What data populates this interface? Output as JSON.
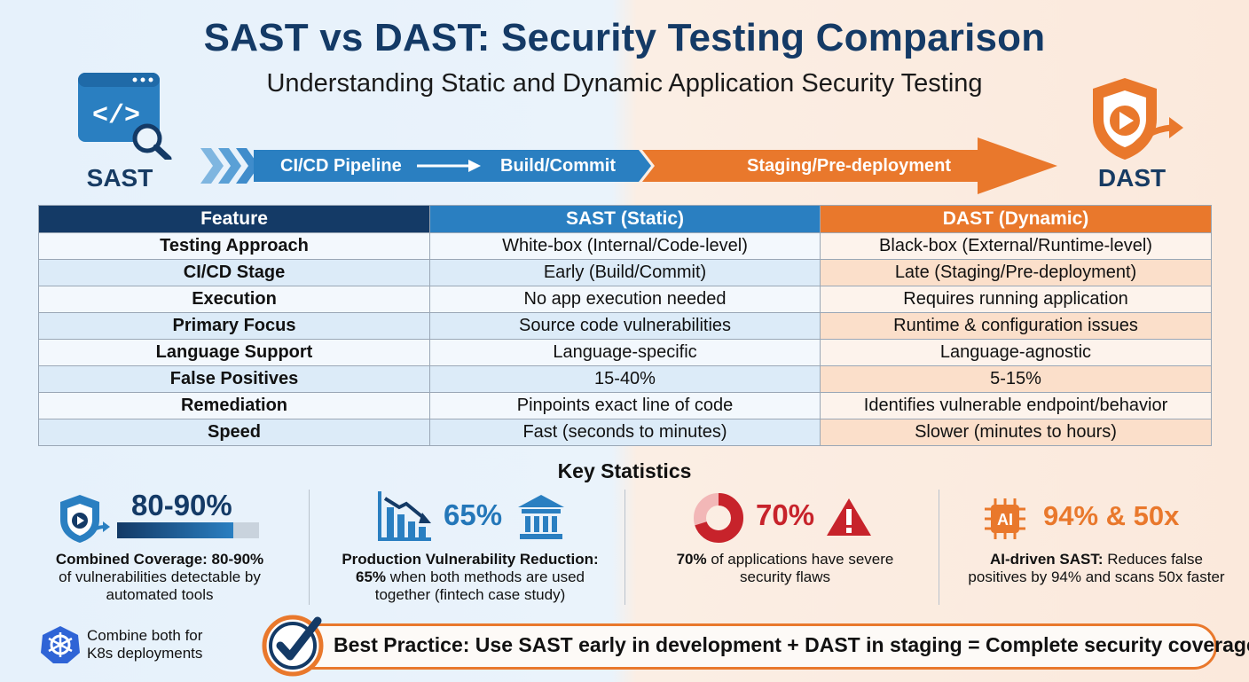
{
  "header": {
    "title": "SAST vs DAST: Security Testing Comparison",
    "subtitle": "Understanding Static and Dynamic Application Security Testing"
  },
  "logos": {
    "sast_label": "SAST",
    "dast_label": "DAST"
  },
  "pipeline": {
    "stage1": "CI/CD Pipeline",
    "stage2": "Build/Commit",
    "stage3": "Staging/Pre-deployment"
  },
  "table": {
    "headers": [
      "Feature",
      "SAST (Static)",
      "DAST (Dynamic)"
    ],
    "rows": [
      [
        "Testing Approach",
        "White-box (Internal/Code-level)",
        "Black-box (External/Runtime-level)"
      ],
      [
        "CI/CD Stage",
        "Early (Build/Commit)",
        "Late (Staging/Pre-deployment)"
      ],
      [
        "Execution",
        "No app execution needed",
        "Requires running application"
      ],
      [
        "Primary Focus",
        "Source code vulnerabilities",
        "Runtime & configuration issues"
      ],
      [
        "Language Support",
        "Language-specific",
        "Language-agnostic"
      ],
      [
        "False Positives",
        "15-40%",
        "5-15%"
      ],
      [
        "Remediation",
        "Pinpoints exact line of code",
        "Identifies vulnerable endpoint/behavior"
      ],
      [
        "Speed",
        "Fast (seconds to minutes)",
        "Slower (minutes to hours)"
      ]
    ]
  },
  "stats": {
    "title": "Key Statistics",
    "coverage": {
      "value": "80-90%",
      "bold": "Combined Coverage: 80-90%",
      "text": "of vulnerabilities detectable by automated tools",
      "bar_fill_fraction": 0.82
    },
    "reduction": {
      "value": "65%",
      "bold": "Production Vulnerability Reduction:",
      "bold2": "65%",
      "text": "when both methods are used together (fintech case study)"
    },
    "flaws": {
      "value": "70%",
      "bold": "70%",
      "text": "of applications have severe security flaws",
      "donut_fraction": 0.7
    },
    "ai": {
      "value": "94% & 50x",
      "icon_text": "AI",
      "bold": "AI-driven SAST:",
      "text": "Reduces false positives by 94% and scans 50x faster"
    }
  },
  "k8s": {
    "text": "Combine both for K8s deployments"
  },
  "best_practice": {
    "text": "Best Practice: Use SAST early in development + DAST in staging = Complete security coverage"
  },
  "colors": {
    "navy": "#143a66",
    "blue": "#2a7fc1",
    "orange": "#e9782c",
    "red": "#c7232b"
  }
}
